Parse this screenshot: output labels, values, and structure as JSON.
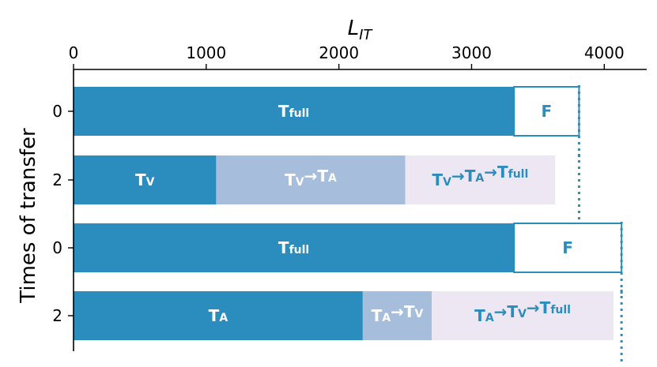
{
  "chart_data": {
    "type": "bar",
    "orientation": "horizontal",
    "xlabel": "L_IT",
    "xlabel_main": "L",
    "xlabel_sub": "IT",
    "ylabel": "Times of transfer",
    "x_axis_position": "top",
    "xlim": [
      0,
      4320
    ],
    "x_ticks": [
      0,
      1000,
      2000,
      3000,
      4000
    ],
    "x_tick_labels": [
      "0",
      "1000",
      "2000",
      "3000",
      "4000"
    ],
    "grid": false,
    "colors": {
      "dark_blue": "#2b8cbe",
      "light_blue": "#a6bddb",
      "lavender": "#ece7f2",
      "white": "#ffffff"
    },
    "rows": [
      {
        "y_label": "0",
        "segments": [
          {
            "start": 0,
            "end": 3320,
            "color": "#2b8cbe",
            "label_main": "T",
            "label_sub": "full",
            "text_color": "#ffffff"
          },
          {
            "start": 3320,
            "end": 3810,
            "color": "#ffffff",
            "outline": "#2b8cbe",
            "label_main": "F",
            "label_sub": "",
            "text_color": "#2b8cbe"
          }
        ],
        "marker": 3810
      },
      {
        "y_label": "2",
        "segments": [
          {
            "start": 0,
            "end": 1075,
            "color": "#2b8cbe",
            "label_main": "T",
            "label_sub": "V",
            "text_color": "#ffffff"
          },
          {
            "start": 1075,
            "end": 2500,
            "color": "#a6bddb",
            "label_main": "T",
            "label_sub": "V→T",
            "label_sub2": "A",
            "text_color": "#ffffff"
          },
          {
            "start": 2500,
            "end": 3630,
            "color": "#ece7f2",
            "label_main": "T",
            "label_sub": "V→T",
            "label_sub2": "A→T",
            "label_sub3": "full",
            "text_color": "#2b8cbe"
          }
        ],
        "marker": 3810
      },
      {
        "y_label": "0",
        "segments": [
          {
            "start": 0,
            "end": 3320,
            "color": "#2b8cbe",
            "label_main": "T",
            "label_sub": "full",
            "text_color": "#ffffff"
          },
          {
            "start": 3320,
            "end": 4130,
            "color": "#ffffff",
            "outline": "#2b8cbe",
            "label_main": "F",
            "label_sub": "",
            "text_color": "#2b8cbe"
          }
        ],
        "marker": 4130
      },
      {
        "y_label": "2",
        "segments": [
          {
            "start": 0,
            "end": 2180,
            "color": "#2b8cbe",
            "label_main": "T",
            "label_sub": "A",
            "text_color": "#ffffff"
          },
          {
            "start": 2180,
            "end": 2700,
            "color": "#a6bddb",
            "label_main": "T",
            "label_sub": "A→T",
            "label_sub2": "V",
            "text_color": "#ffffff"
          },
          {
            "start": 2700,
            "end": 4070,
            "color": "#ece7f2",
            "label_main": "T",
            "label_sub": "A→T",
            "label_sub2": "V→T",
            "label_sub3": "full",
            "text_color": "#2b8cbe"
          }
        ],
        "marker": 4130
      }
    ]
  }
}
